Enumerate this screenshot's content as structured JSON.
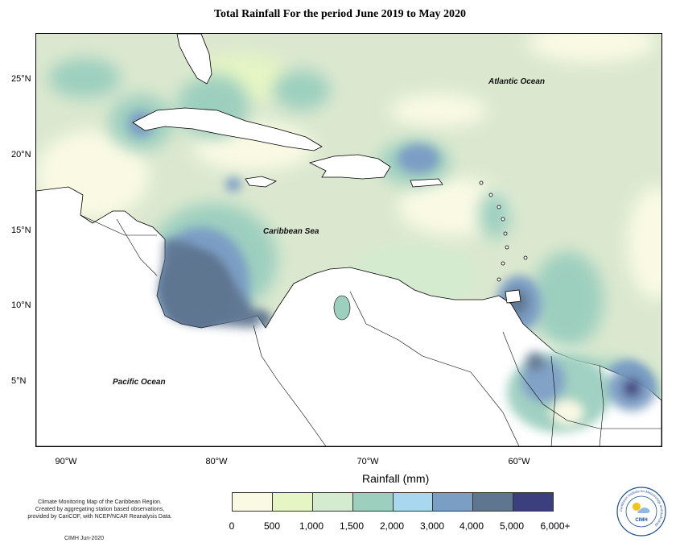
{
  "title": "Total Rainfall For the period June 2019 to May 2020",
  "labels": {
    "atlantic": "Atlantic Ocean",
    "caribbean": "Caribbean Sea",
    "pacific": "Pacific Ocean"
  },
  "latitude_ticks": [
    "25°N",
    "20°N",
    "15°N",
    "10°N",
    "5°N"
  ],
  "longitude_ticks": [
    "90°W",
    "80°W",
    "70°W",
    "60°W"
  ],
  "legend": {
    "title": "Rainfall (mm)",
    "colors": [
      "#fafae4",
      "#e6f5c4",
      "#d4ebcf",
      "#9dcfbf",
      "#a9d7f0",
      "#7b9ec4",
      "#5f7691",
      "#3b3f7d"
    ],
    "ticks": [
      "0",
      "500",
      "1,000",
      "1,500",
      "2,000",
      "3,000",
      "4,000",
      "5,000",
      "6,000+"
    ]
  },
  "footer": {
    "line1": "Climate Monitoring Map of the Caribbean Region.",
    "line2": "Created by aggregating station based observations,",
    "line3": "provided by CariCOF, with NCEP/NCAR Reanalysis Data.",
    "credit": "CIMH Jun-2020"
  },
  "logo": {
    "text": "CIMH",
    "ring_text": "Caribbean Institute for Meteorology and Hydrology"
  }
}
